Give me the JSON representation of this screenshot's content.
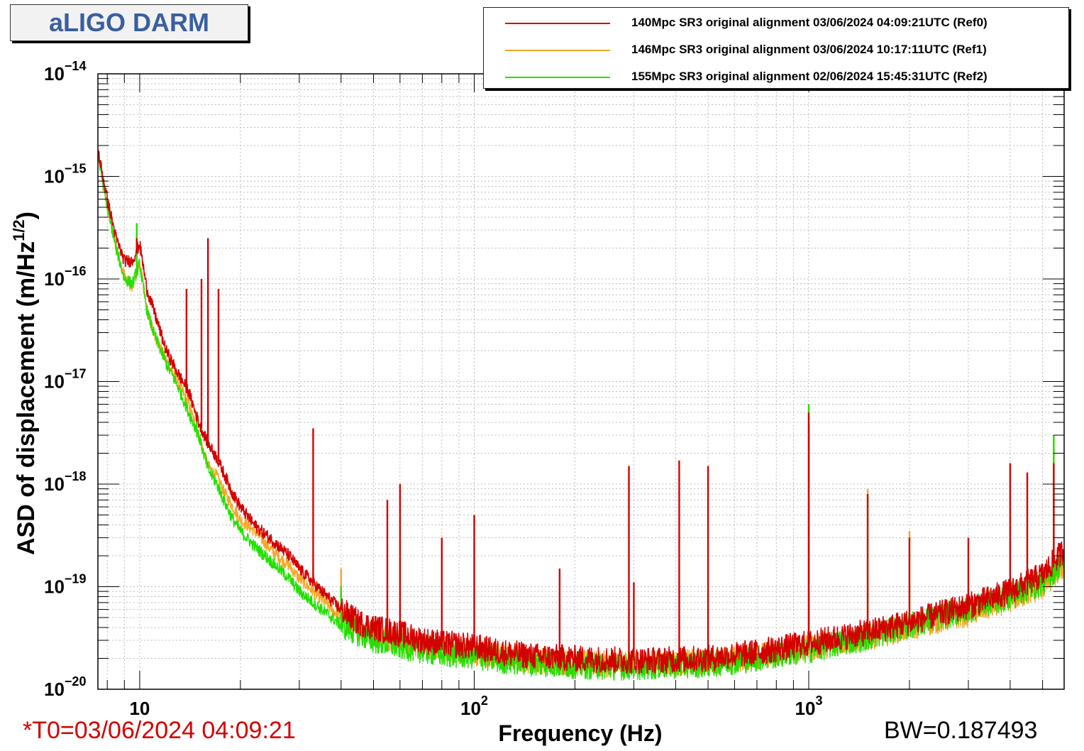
{
  "page_title": "aLIGO DARM",
  "t0_label": "*T0=03/06/2024 04:09:21",
  "bw_label": "BW=0.187493",
  "chart_data": {
    "type": "line",
    "title": "aLIGO DARM",
    "xlabel": "Frequency (Hz)",
    "ylabel_main": "ASD of displacement (m/Hz",
    "ylabel_exp": "1/2",
    "ylabel_close": ")",
    "x_scale": "log",
    "y_scale": "log",
    "xlim": [
      7.5,
      5800
    ],
    "ylim": [
      1e-20,
      1e-14
    ],
    "grid": true,
    "legend_position": "top-right",
    "x_tick_labels": [
      {
        "value": 10,
        "base": "10",
        "exp": ""
      },
      {
        "value": 100,
        "base": "10",
        "exp": "2"
      },
      {
        "value": 1000,
        "base": "10",
        "exp": "3"
      }
    ],
    "y_tick_labels": [
      {
        "value": 1e-14,
        "base": "10",
        "exp": "−14"
      },
      {
        "value": 1e-15,
        "base": "10",
        "exp": "−15"
      },
      {
        "value": 1e-16,
        "base": "10",
        "exp": "−16"
      },
      {
        "value": 1e-17,
        "base": "10",
        "exp": "−17"
      },
      {
        "value": 1e-18,
        "base": "10",
        "exp": "−18"
      },
      {
        "value": 1e-19,
        "base": "10",
        "exp": "−19"
      },
      {
        "value": 1e-20,
        "base": "10",
        "exp": "−20"
      }
    ],
    "series": [
      {
        "name": "140Mpc SR3 original alignment 03/06/2024 04:09:21UTC (Ref0)",
        "color": "#d40000",
        "x": [
          7.5,
          8,
          8.5,
          9,
          9.5,
          10,
          10.5,
          11,
          12,
          13,
          14,
          15,
          16,
          17,
          18,
          19,
          20,
          22,
          25,
          28,
          30,
          35,
          40,
          45,
          50,
          60,
          70,
          80,
          100,
          120,
          150,
          200,
          250,
          300,
          400,
          500,
          700,
          1000,
          1500,
          2000,
          3000,
          4000,
          5000,
          5800
        ],
        "values": [
          1.8e-15,
          6e-16,
          2.5e-16,
          1.5e-16,
          1.5e-16,
          2.2e-16,
          8e-17,
          5e-17,
          2e-17,
          1.2e-17,
          8e-18,
          4e-18,
          2.5e-18,
          1.8e-18,
          1.2e-18,
          8e-19,
          6e-19,
          4e-19,
          2.8e-19,
          2e-19,
          1.5e-19,
          9e-20,
          6e-20,
          4.5e-20,
          4e-20,
          3.5e-20,
          3e-20,
          2.8e-20,
          2.6e-20,
          2.3e-20,
          2.1e-20,
          2e-20,
          1.95e-20,
          1.9e-20,
          1.95e-20,
          2e-20,
          2.3e-20,
          2.8e-20,
          3.6e-20,
          4.5e-20,
          6.5e-20,
          9e-20,
          1.3e-19,
          2.3e-19
        ],
        "peaks": [
          {
            "x": 9.8,
            "y": 2.5e-16
          },
          {
            "x": 13.8,
            "y": 8e-17
          },
          {
            "x": 15.3,
            "y": 1e-16
          },
          {
            "x": 16.0,
            "y": 2.5e-16
          },
          {
            "x": 17.2,
            "y": 8e-17
          },
          {
            "x": 33,
            "y": 3.5e-18
          },
          {
            "x": 55,
            "y": 7e-19
          },
          {
            "x": 60,
            "y": 1e-18
          },
          {
            "x": 80,
            "y": 3e-19
          },
          {
            "x": 100,
            "y": 5e-19
          },
          {
            "x": 180,
            "y": 1.5e-19
          },
          {
            "x": 290,
            "y": 1.5e-18
          },
          {
            "x": 300,
            "y": 1.1e-19
          },
          {
            "x": 410,
            "y": 1.7e-18
          },
          {
            "x": 500,
            "y": 1.5e-18
          },
          {
            "x": 1000,
            "y": 5e-18
          },
          {
            "x": 1500,
            "y": 8e-19
          },
          {
            "x": 2000,
            "y": 3e-19
          },
          {
            "x": 3000,
            "y": 3e-19
          },
          {
            "x": 4000,
            "y": 1.6e-18
          },
          {
            "x": 4500,
            "y": 1.3e-18
          },
          {
            "x": 5400,
            "y": 1.6e-18
          }
        ]
      },
      {
        "name": "146Mpc SR3 original alignment 03/06/2024 10:17:11UTC (Ref1)",
        "color": "#f5a623",
        "x": [
          7.5,
          8,
          8.5,
          9,
          9.5,
          10,
          10.5,
          11,
          12,
          13,
          14,
          15,
          16,
          17,
          18,
          19,
          20,
          22,
          25,
          28,
          30,
          35,
          40,
          45,
          50,
          60,
          70,
          80,
          100,
          120,
          150,
          200,
          250,
          300,
          400,
          500,
          700,
          1000,
          1500,
          2000,
          3000,
          4000,
          5000,
          5800
        ],
        "values": [
          1.7e-15,
          5e-16,
          2e-16,
          1.1e-16,
          8e-17,
          1.5e-16,
          5e-17,
          3e-17,
          1.6e-17,
          1e-17,
          6e-18,
          3e-18,
          1.5e-18,
          1.2e-18,
          8e-19,
          6e-19,
          4.5e-19,
          3.5e-19,
          2.2e-19,
          1.6e-19,
          1.2e-19,
          7.5e-20,
          5e-20,
          4e-20,
          3.5e-20,
          3e-20,
          2.7e-20,
          2.5e-20,
          2.3e-20,
          2.1e-20,
          1.9e-20,
          1.8e-20,
          1.75e-20,
          1.75e-20,
          1.8e-20,
          1.85e-20,
          2.1e-20,
          2.5e-20,
          3.2e-20,
          4e-20,
          5.5e-20,
          7.5e-20,
          1e-19,
          1.6e-19
        ],
        "peaks": [
          {
            "x": 9.8,
            "y": 3e-16
          },
          {
            "x": 14.8,
            "y": 5e-18
          },
          {
            "x": 33,
            "y": 1.5e-19
          },
          {
            "x": 40,
            "y": 1.5e-19
          },
          {
            "x": 1000,
            "y": 4e-18
          },
          {
            "x": 1500,
            "y": 9e-19
          },
          {
            "x": 2000,
            "y": 3.5e-19
          },
          {
            "x": 5400,
            "y": 3e-18
          }
        ]
      },
      {
        "name": "155Mpc SR3 original alignment 02/06/2024 15:45:31UTC (Ref2)",
        "color": "#22e000",
        "x": [
          7.5,
          8,
          8.5,
          9,
          9.5,
          10,
          10.5,
          11,
          12,
          13,
          14,
          15,
          16,
          17,
          18,
          19,
          20,
          22,
          25,
          28,
          30,
          35,
          40,
          45,
          50,
          60,
          70,
          80,
          100,
          120,
          150,
          200,
          250,
          300,
          400,
          500,
          700,
          1000,
          1500,
          2000,
          3000,
          4000,
          5000,
          5800
        ],
        "values": [
          1.6e-15,
          5e-16,
          2e-16,
          1e-16,
          9e-17,
          1.4e-16,
          5e-17,
          3e-17,
          1.5e-17,
          9e-18,
          5e-18,
          3e-18,
          1.4e-18,
          1e-18,
          6.5e-19,
          4.5e-19,
          3.5e-19,
          2.5e-19,
          1.7e-19,
          1.2e-19,
          9e-20,
          6e-20,
          4.2e-20,
          3.5e-20,
          3e-20,
          2.6e-20,
          2.4e-20,
          2.2e-20,
          2.1e-20,
          1.9e-20,
          1.8e-20,
          1.7e-20,
          1.65e-20,
          1.65e-20,
          1.7e-20,
          1.75e-20,
          2e-20,
          2.4e-20,
          3.2e-20,
          4.2e-20,
          6e-20,
          8e-20,
          1.1e-19,
          1.8e-19
        ],
        "peaks": [
          {
            "x": 9.8,
            "y": 3.5e-16
          },
          {
            "x": 14.8,
            "y": 4e-18
          },
          {
            "x": 40,
            "y": 1e-19
          },
          {
            "x": 1000,
            "y": 6e-18
          },
          {
            "x": 5400,
            "y": 3e-18
          }
        ]
      }
    ]
  }
}
